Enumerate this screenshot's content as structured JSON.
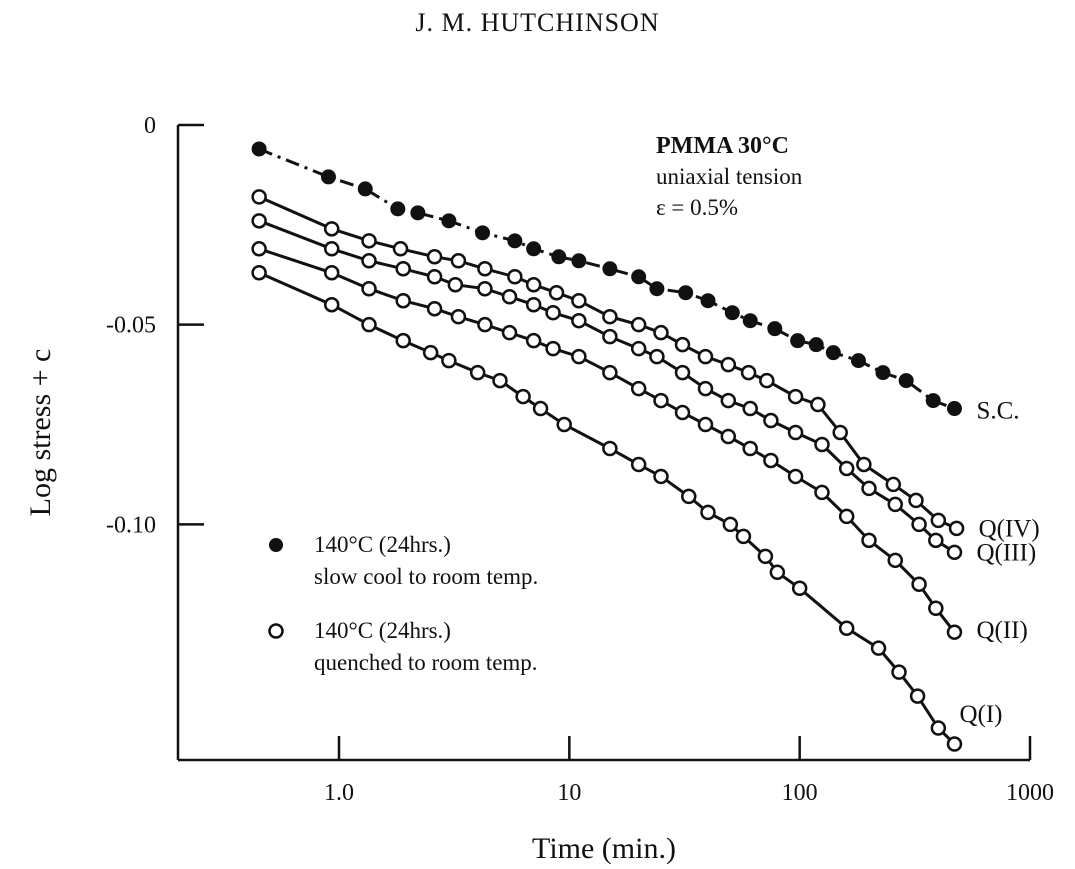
{
  "header": {
    "text": "J. M. HUTCHINSON"
  },
  "chart_data": {
    "type": "scatter",
    "title": "",
    "xlabel": "Time (min.)",
    "ylabel": "Log stress + c",
    "xscale": "log",
    "xlim": [
      0.2,
      1000
    ],
    "ylim": [
      -0.159,
      0
    ],
    "xticks": [
      1.0,
      10,
      100,
      1000
    ],
    "xtick_labels": [
      "1.0",
      "10",
      "100",
      "1000"
    ],
    "yticks": [
      0,
      -0.05,
      -0.1
    ],
    "ytick_labels": [
      "0",
      "-0.05",
      "-0.10"
    ],
    "annotation": [
      "PMMA 30°C",
      "uniaxial tension",
      "ε = 0.5%"
    ],
    "legend": {
      "placement": "bottom-left",
      "entries": [
        {
          "marker": "filled-circle",
          "lines": [
            "140°C (24hrs.)",
            "slow cool to room temp."
          ]
        },
        {
          "marker": "open-circle",
          "lines": [
            "140°C (24hrs.)",
            "quenched to room temp."
          ]
        }
      ]
    },
    "series": [
      {
        "name": "S.C.",
        "marker": "filled",
        "line": "dash-dot",
        "x": [
          0.45,
          0.9,
          1.3,
          1.8,
          2.2,
          3.0,
          4.2,
          5.8,
          7.0,
          9.0,
          11,
          15,
          20,
          24,
          32,
          40,
          51,
          61,
          78,
          98,
          118,
          140,
          180,
          230,
          290,
          380,
          470
        ],
        "y": [
          -0.006,
          -0.013,
          -0.016,
          -0.021,
          -0.022,
          -0.024,
          -0.027,
          -0.029,
          -0.031,
          -0.033,
          -0.034,
          -0.036,
          -0.038,
          -0.041,
          -0.042,
          -0.044,
          -0.047,
          -0.049,
          -0.051,
          -0.054,
          -0.055,
          -0.057,
          -0.059,
          -0.062,
          -0.064,
          -0.069,
          -0.071
        ]
      },
      {
        "name": "Q(IV)",
        "marker": "open",
        "line": "solid",
        "x": [
          0.45,
          0.93,
          1.35,
          1.85,
          2.6,
          3.3,
          4.3,
          5.8,
          7.0,
          8.8,
          11,
          15,
          20,
          25,
          31,
          39,
          49,
          60,
          72,
          96,
          120,
          150,
          190,
          255,
          320,
          400,
          480
        ],
        "y": [
          -0.018,
          -0.026,
          -0.029,
          -0.031,
          -0.033,
          -0.034,
          -0.036,
          -0.038,
          -0.04,
          -0.042,
          -0.044,
          -0.048,
          -0.05,
          -0.052,
          -0.055,
          -0.058,
          -0.06,
          -0.062,
          -0.064,
          -0.068,
          -0.07,
          -0.077,
          -0.085,
          -0.09,
          -0.094,
          -0.099,
          -0.101
        ]
      },
      {
        "name": "Q(III)",
        "marker": "open",
        "line": "solid",
        "x": [
          0.45,
          0.93,
          1.35,
          1.9,
          2.6,
          3.2,
          4.3,
          5.5,
          7.0,
          8.5,
          11,
          15,
          20,
          24,
          31,
          39,
          49,
          61,
          75,
          96,
          125,
          160,
          200,
          260,
          330,
          390,
          470
        ],
        "y": [
          -0.024,
          -0.031,
          -0.034,
          -0.036,
          -0.038,
          -0.04,
          -0.041,
          -0.043,
          -0.045,
          -0.047,
          -0.049,
          -0.053,
          -0.056,
          -0.058,
          -0.062,
          -0.066,
          -0.069,
          -0.071,
          -0.074,
          -0.077,
          -0.08,
          -0.086,
          -0.091,
          -0.095,
          -0.1,
          -0.104,
          -0.107
        ]
      },
      {
        "name": "Q(II)",
        "marker": "open",
        "line": "solid",
        "x": [
          0.45,
          0.93,
          1.35,
          1.9,
          2.6,
          3.3,
          4.3,
          5.5,
          7.0,
          8.5,
          11,
          15,
          20,
          25,
          31,
          39,
          49,
          61,
          75,
          96,
          125,
          160,
          200,
          260,
          330,
          390,
          470
        ],
        "y": [
          -0.031,
          -0.037,
          -0.041,
          -0.044,
          -0.046,
          -0.048,
          -0.05,
          -0.052,
          -0.054,
          -0.056,
          -0.058,
          -0.062,
          -0.066,
          -0.069,
          -0.072,
          -0.075,
          -0.078,
          -0.081,
          -0.084,
          -0.088,
          -0.092,
          -0.098,
          -0.104,
          -0.109,
          -0.115,
          -0.121,
          -0.127
        ]
      },
      {
        "name": "Q(I)",
        "marker": "open",
        "line": "solid",
        "x": [
          0.45,
          0.93,
          1.35,
          1.9,
          2.5,
          3.0,
          4.0,
          5.0,
          6.3,
          7.5,
          9.5,
          15,
          20,
          25,
          33,
          40,
          50,
          57,
          71,
          80,
          100,
          160,
          220,
          270,
          325,
          400,
          470
        ],
        "y": [
          -0.037,
          -0.045,
          -0.05,
          -0.054,
          -0.057,
          -0.059,
          -0.062,
          -0.064,
          -0.068,
          -0.071,
          -0.075,
          -0.081,
          -0.085,
          -0.088,
          -0.093,
          -0.097,
          -0.1,
          -0.103,
          -0.108,
          -0.112,
          -0.116,
          -0.126,
          -0.131,
          -0.137,
          -0.143,
          -0.151,
          -0.155
        ]
      }
    ]
  }
}
